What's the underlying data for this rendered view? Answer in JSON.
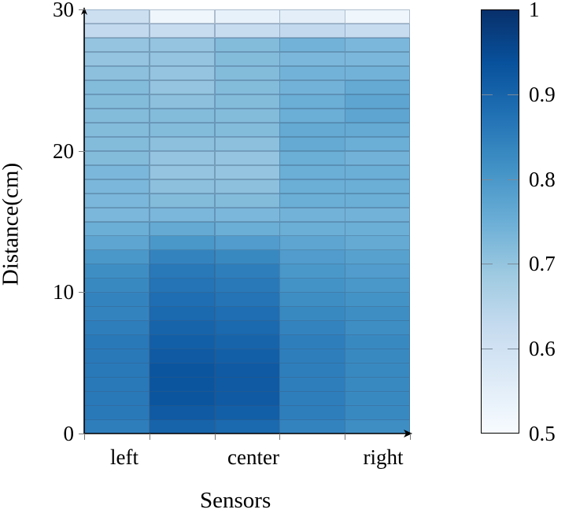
{
  "chart_data": {
    "type": "heatmap",
    "title": "",
    "xlabel": "Sensors",
    "ylabel": "Distance(cm)",
    "x_tick_labels": [
      "left",
      "center",
      "right"
    ],
    "x_columns": 5,
    "y_ticks": [
      0,
      10,
      20,
      30
    ],
    "ylim": [
      0,
      30
    ],
    "y_bin_size": 1,
    "colormap": "Blues",
    "colorbar": {
      "min": 0.5,
      "max": 1,
      "ticks": [
        0.5,
        0.6,
        0.7,
        0.8,
        0.9,
        1
      ]
    },
    "grid": true,
    "rows_bottom_to_top": [
      [
        0.85,
        0.9,
        0.89,
        0.84,
        0.82
      ],
      [
        0.86,
        0.92,
        0.91,
        0.85,
        0.83
      ],
      [
        0.86,
        0.93,
        0.92,
        0.85,
        0.83
      ],
      [
        0.86,
        0.93,
        0.92,
        0.85,
        0.83
      ],
      [
        0.86,
        0.93,
        0.92,
        0.85,
        0.83
      ],
      [
        0.86,
        0.92,
        0.91,
        0.85,
        0.83
      ],
      [
        0.86,
        0.91,
        0.9,
        0.85,
        0.83
      ],
      [
        0.85,
        0.9,
        0.89,
        0.84,
        0.82
      ],
      [
        0.84,
        0.89,
        0.88,
        0.83,
        0.82
      ],
      [
        0.84,
        0.88,
        0.87,
        0.82,
        0.81
      ],
      [
        0.83,
        0.87,
        0.86,
        0.81,
        0.8
      ],
      [
        0.82,
        0.86,
        0.85,
        0.8,
        0.79
      ],
      [
        0.8,
        0.84,
        0.83,
        0.79,
        0.78
      ],
      [
        0.77,
        0.8,
        0.79,
        0.77,
        0.76
      ],
      [
        0.75,
        0.76,
        0.75,
        0.75,
        0.75
      ],
      [
        0.73,
        0.73,
        0.73,
        0.74,
        0.74
      ],
      [
        0.73,
        0.72,
        0.72,
        0.75,
        0.75
      ],
      [
        0.73,
        0.71,
        0.71,
        0.75,
        0.75
      ],
      [
        0.73,
        0.7,
        0.7,
        0.75,
        0.75
      ],
      [
        0.72,
        0.7,
        0.7,
        0.75,
        0.74
      ],
      [
        0.72,
        0.71,
        0.71,
        0.76,
        0.75
      ],
      [
        0.72,
        0.72,
        0.72,
        0.76,
        0.76
      ],
      [
        0.72,
        0.72,
        0.72,
        0.75,
        0.77
      ],
      [
        0.72,
        0.71,
        0.72,
        0.75,
        0.77
      ],
      [
        0.72,
        0.7,
        0.72,
        0.74,
        0.76
      ],
      [
        0.71,
        0.7,
        0.72,
        0.74,
        0.74
      ],
      [
        0.7,
        0.7,
        0.72,
        0.73,
        0.73
      ],
      [
        0.7,
        0.7,
        0.72,
        0.74,
        0.73
      ],
      [
        0.63,
        0.62,
        0.62,
        0.63,
        0.62
      ],
      [
        0.61,
        0.52,
        0.54,
        0.55,
        0.52
      ]
    ]
  },
  "labels": {
    "xlabel": "Sensors",
    "ylabel": "Distance(cm)",
    "xticks": [
      "left",
      "center",
      "right"
    ],
    "yticks": [
      "0",
      "10",
      "20",
      "30"
    ],
    "cbticks": [
      "0.5",
      "0.6",
      "0.7",
      "0.8",
      "0.9",
      "1"
    ]
  }
}
